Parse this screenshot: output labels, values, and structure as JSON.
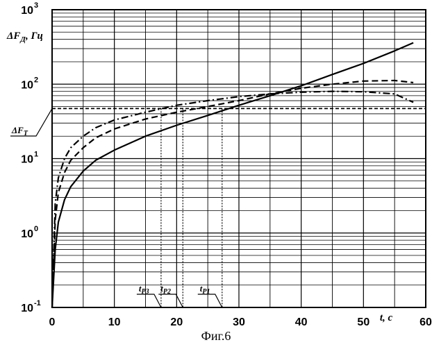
{
  "chart_data": {
    "type": "line",
    "ylabel_main": "ΔF",
    "ylabel_sub": "Д",
    "ylabel_unit": ", Гц",
    "xlabel": "t, c",
    "caption": "Фиг.6",
    "y_scale": "log",
    "xlim": [
      0,
      60
    ],
    "ylim": [
      0.1,
      1000
    ],
    "grid": true,
    "x_ticks": [
      0,
      10,
      20,
      30,
      40,
      50,
      60
    ],
    "y_ticks": [
      {
        "value": 0.1,
        "base": "10",
        "exp": "-1"
      },
      {
        "value": 1,
        "base": "10",
        "exp": "0"
      },
      {
        "value": 10,
        "base": "10",
        "exp": "1"
      },
      {
        "value": 100,
        "base": "10",
        "exp": "2"
      },
      {
        "value": 1000,
        "base": "10",
        "exp": "3"
      }
    ],
    "series": [
      {
        "style": "solid",
        "x": [
          0,
          0.5,
          1,
          2,
          3,
          5,
          7,
          10,
          15,
          20,
          25,
          30,
          35,
          40,
          45,
          50,
          55,
          58
        ],
        "y": [
          0.1,
          0.6,
          1.4,
          2.8,
          4.2,
          6.8,
          9.5,
          13,
          20,
          28,
          38,
          52,
          70,
          95,
          135,
          190,
          280,
          360
        ]
      },
      {
        "style": "long-dash",
        "x": [
          0,
          0.5,
          1,
          2,
          3,
          5,
          7,
          10,
          15,
          20,
          25,
          30,
          35,
          40,
          45,
          50,
          55,
          58
        ],
        "y": [
          0.1,
          1.5,
          3.5,
          6.5,
          9.5,
          14,
          19,
          25,
          34,
          42,
          50,
          60,
          74,
          88,
          100,
          110,
          112,
          105
        ]
      },
      {
        "style": "dash-dot",
        "x": [
          0,
          0.5,
          1,
          2,
          3,
          5,
          7,
          10,
          15,
          20,
          25,
          30,
          35,
          40,
          45,
          50,
          55,
          58
        ],
        "y": [
          0.1,
          2.5,
          5.5,
          10,
          14,
          20,
          26,
          33,
          42,
          52,
          60,
          68,
          74,
          78,
          80,
          79,
          74,
          57
        ]
      },
      {
        "style": "short-dash",
        "x": [
          0,
          60
        ],
        "y": [
          47,
          47
        ]
      }
    ],
    "annotations": [
      {
        "main": "ΔF",
        "sub": "T",
        "y": 47
      },
      {
        "main": "t",
        "sub": "P3",
        "x": 17.5
      },
      {
        "main": "t",
        "sub": "P2",
        "x": 21
      },
      {
        "main": "t",
        "sub": "P1",
        "x": 27.3
      }
    ]
  }
}
